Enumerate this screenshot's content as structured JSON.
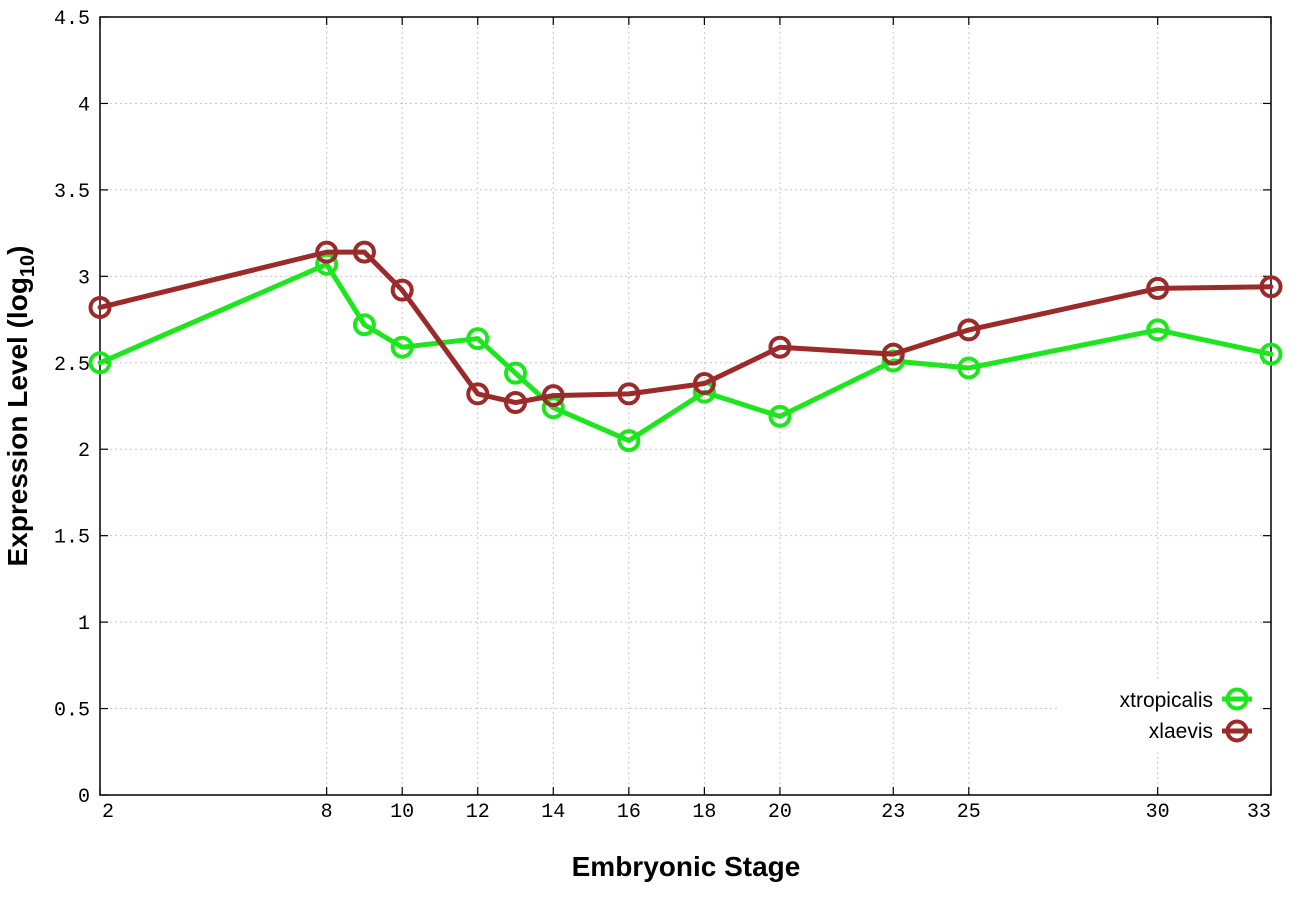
{
  "chart_data": {
    "type": "line",
    "xlabel": "Embryonic Stage",
    "ylabel": "Expression Level (log",
    "ylabel_sub": "10",
    "ylabel_close": ")",
    "x": [
      2,
      8,
      9,
      10,
      12,
      13,
      14,
      16,
      18,
      20,
      23,
      25,
      30,
      33
    ],
    "x_tick_labels": [
      "2",
      "8",
      "10",
      "12",
      "14",
      "16",
      "18",
      "20",
      "23",
      "25",
      "30",
      "33"
    ],
    "y_tick_labels": [
      "0",
      "0.5",
      "1",
      "1.5",
      "2",
      "2.5",
      "3",
      "3.5",
      "4",
      "4.5"
    ],
    "xlim": [
      2,
      33
    ],
    "ylim": [
      0,
      4.5
    ],
    "grid": true,
    "legend_position": "bottom-right",
    "series": [
      {
        "name": "xtropicalis",
        "color": "#1ee61e",
        "values": [
          2.5,
          3.07,
          2.72,
          2.59,
          2.64,
          2.44,
          2.24,
          2.05,
          2.33,
          2.19,
          2.51,
          2.47,
          2.69,
          2.55
        ]
      },
      {
        "name": "xlaevis",
        "color": "#9b2a2a",
        "values": [
          2.82,
          3.14,
          3.14,
          2.92,
          2.32,
          2.27,
          2.31,
          2.32,
          2.38,
          2.59,
          2.55,
          2.69,
          2.93,
          2.94
        ]
      }
    ]
  }
}
